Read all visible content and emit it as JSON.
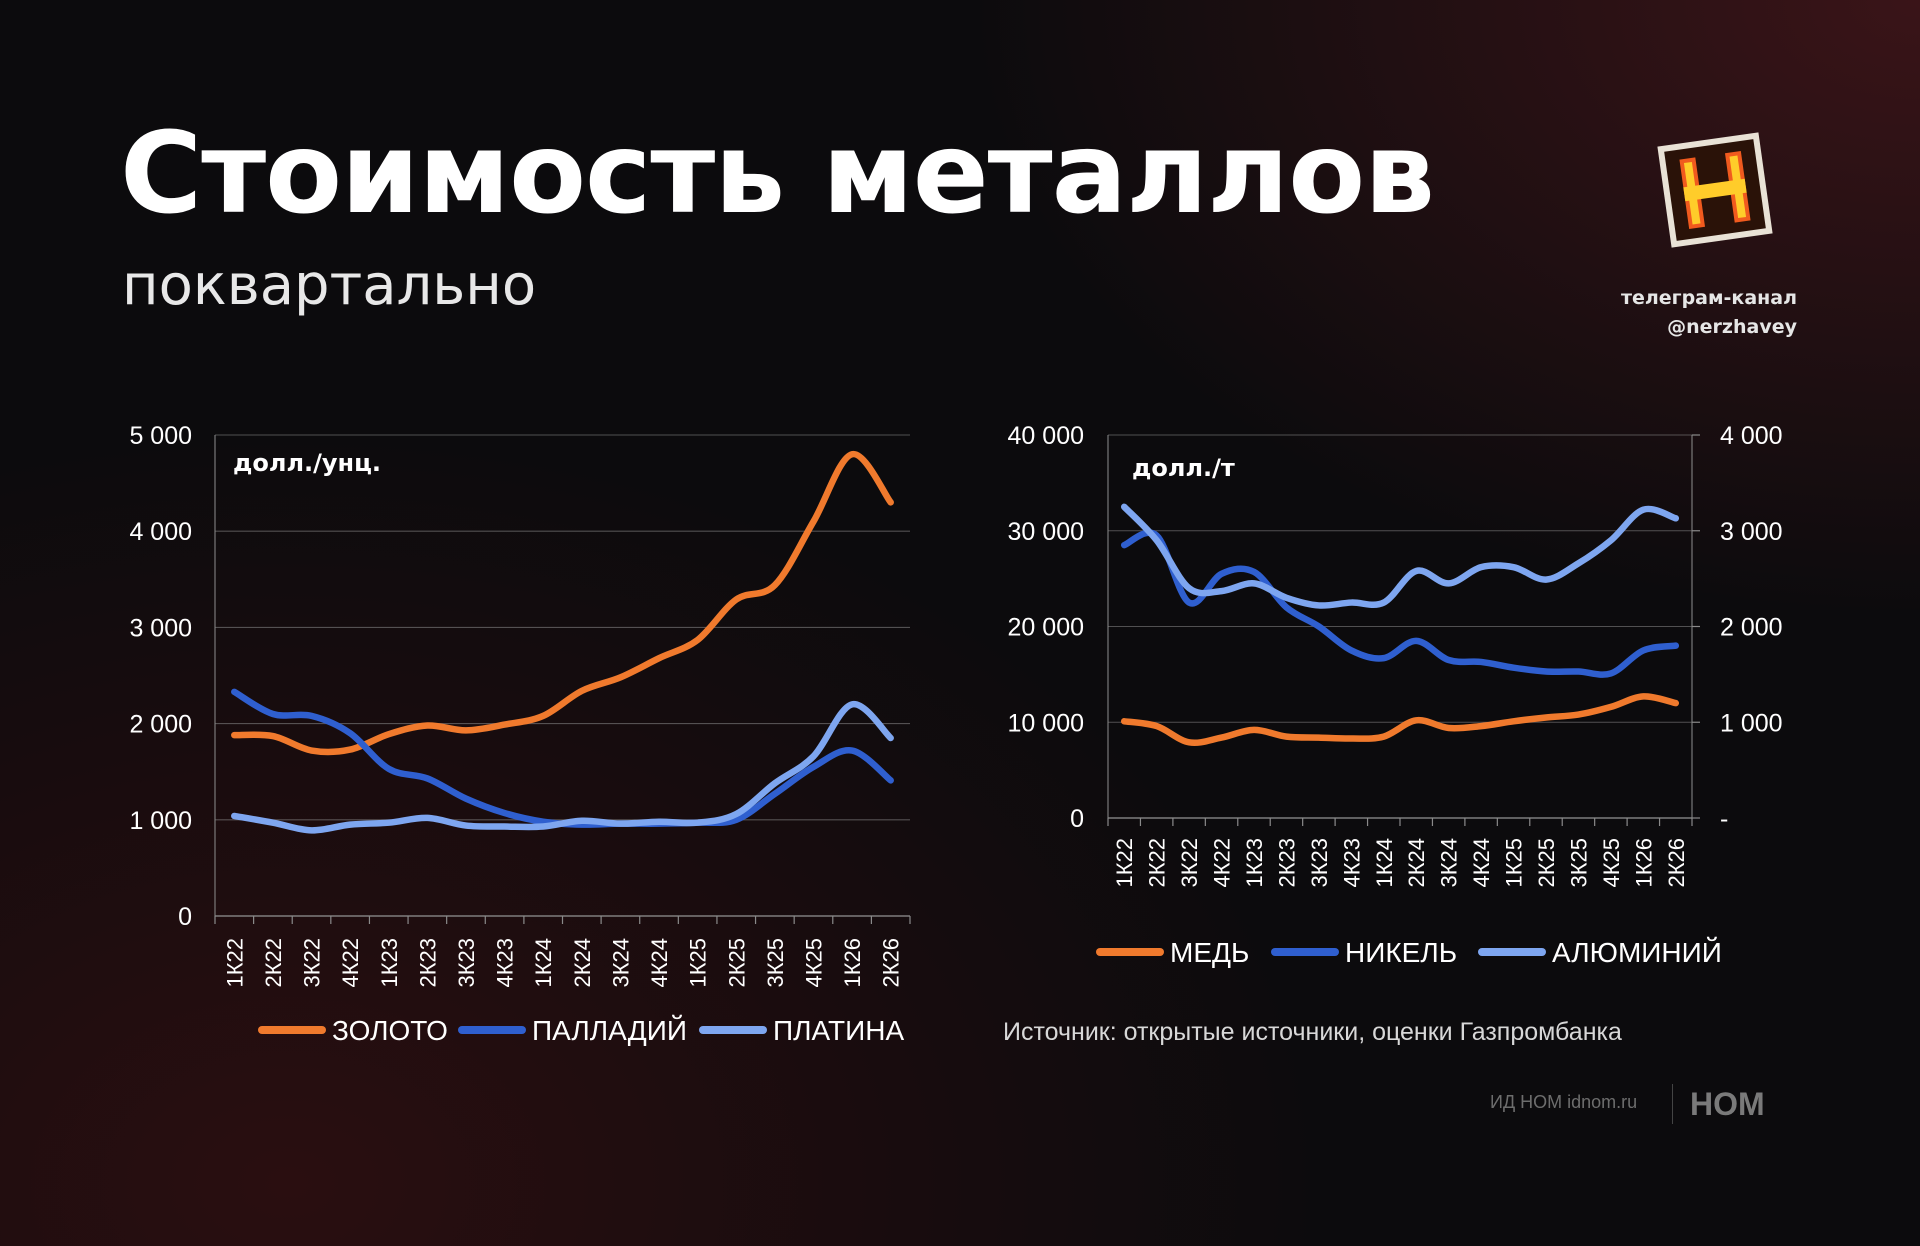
{
  "header": {
    "title": "Стоимость металлов",
    "subtitle": "поквартально"
  },
  "channel": {
    "line1": "телеграм-канал",
    "line2": "@nerzhavey"
  },
  "source": "Источник: открытые источники, оценки Газпромбанка",
  "footer": {
    "credit": "ИД НОМ idnom.ru",
    "brand": "НОМ"
  },
  "colors": {
    "gold": "#f07a2d",
    "palladium": "#2f5fcf",
    "platinum": "#7ea6f0",
    "copper": "#f07a2d",
    "nickel": "#2f5fcf",
    "aluminum": "#7ea6f0",
    "grid": "#8a8a8a"
  },
  "chart_data": [
    {
      "type": "line",
      "unit_label": "долл./унц.",
      "categories": [
        "1К22",
        "2К22",
        "3К22",
        "4К22",
        "1К23",
        "2К23",
        "3К23",
        "4К23",
        "1К24",
        "2К24",
        "3К24",
        "4К24",
        "1К25",
        "2К25",
        "3К25",
        "4К25",
        "1К26",
        "2К26"
      ],
      "ylim": [
        0,
        5000
      ],
      "yticks": [
        "0",
        "1 000",
        "2 000",
        "3 000",
        "4 000",
        "5 000"
      ],
      "ytick_values": [
        0,
        1000,
        2000,
        3000,
        4000,
        5000
      ],
      "grid": true,
      "legend_position": "bottom",
      "series": [
        {
          "name": "ЗОЛОТО",
          "color_key": "gold",
          "values": [
            1880,
            1870,
            1720,
            1730,
            1890,
            1980,
            1930,
            1990,
            2080,
            2340,
            2480,
            2680,
            2870,
            3290,
            3440,
            4100,
            4800,
            4300
          ]
        },
        {
          "name": "ПАЛЛАДИЙ",
          "color_key": "palladium",
          "values": [
            2330,
            2100,
            2080,
            1900,
            1530,
            1430,
            1220,
            1070,
            980,
            950,
            960,
            960,
            970,
            1000,
            1270,
            1550,
            1720,
            1410
          ]
        },
        {
          "name": "ПЛАТИНА",
          "color_key": "platinum",
          "values": [
            1040,
            970,
            890,
            950,
            970,
            1020,
            940,
            930,
            930,
            990,
            960,
            980,
            970,
            1060,
            1380,
            1660,
            2200,
            1850
          ]
        }
      ]
    },
    {
      "type": "line",
      "unit_label": "долл./т",
      "categories": [
        "1К22",
        "2К22",
        "3К22",
        "4К22",
        "1К23",
        "2К23",
        "3К23",
        "4К23",
        "1К24",
        "2К24",
        "3К24",
        "4К24",
        "1К25",
        "2К25",
        "3К25",
        "4К25",
        "1К26",
        "2К26"
      ],
      "ylim": [
        0,
        40000
      ],
      "yticks": [
        "0",
        "10 000",
        "20 000",
        "30 000",
        "40 000"
      ],
      "ytick_values": [
        0,
        10000,
        20000,
        30000,
        40000
      ],
      "y2lim": [
        0,
        4000
      ],
      "y2ticks": [
        "-",
        "1 000",
        "2 000",
        "3 000",
        "4 000"
      ],
      "y2tick_values": [
        0,
        1000,
        2000,
        3000,
        4000
      ],
      "grid": true,
      "legend_position": "bottom",
      "series": [
        {
          "name": "МЕДЬ",
          "color_key": "copper",
          "axis": "left",
          "values": [
            10100,
            9600,
            7900,
            8400,
            9200,
            8500,
            8400,
            8300,
            8500,
            10200,
            9400,
            9600,
            10100,
            10500,
            10800,
            11600,
            12700,
            12000
          ]
        },
        {
          "name": "НИКЕЛЬ",
          "color_key": "nickel",
          "axis": "left",
          "values": [
            28500,
            29500,
            22500,
            25500,
            25700,
            22000,
            20000,
            17500,
            16700,
            18500,
            16500,
            16300,
            15700,
            15300,
            15300,
            15100,
            17500,
            18000
          ]
        },
        {
          "name": "АЛЮМИНИЙ",
          "color_key": "aluminum",
          "axis": "right",
          "values": [
            3250,
            2900,
            2400,
            2370,
            2450,
            2300,
            2220,
            2250,
            2250,
            2580,
            2450,
            2620,
            2620,
            2490,
            2660,
            2900,
            3220,
            3130
          ]
        }
      ]
    }
  ]
}
